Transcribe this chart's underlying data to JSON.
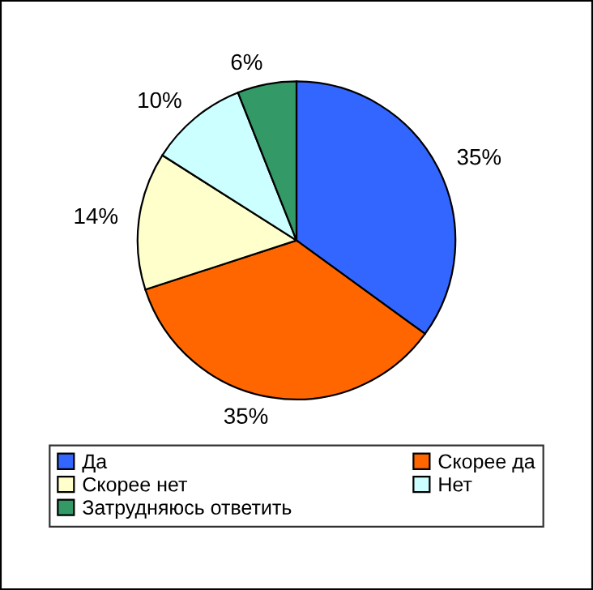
{
  "chart_data": {
    "type": "pie",
    "categories": [
      "Да",
      "Скорее да",
      "Скорее нет",
      "Нет",
      "Затрудняюсь ответить"
    ],
    "values": [
      35,
      35,
      14,
      10,
      6
    ],
    "colors": [
      "#3366ff",
      "#ff6600",
      "#ffffcc",
      "#ccffff",
      "#339966"
    ],
    "value_labels": [
      "35%",
      "35%",
      "14%",
      "10%",
      "6%"
    ],
    "legend": "bottom"
  }
}
